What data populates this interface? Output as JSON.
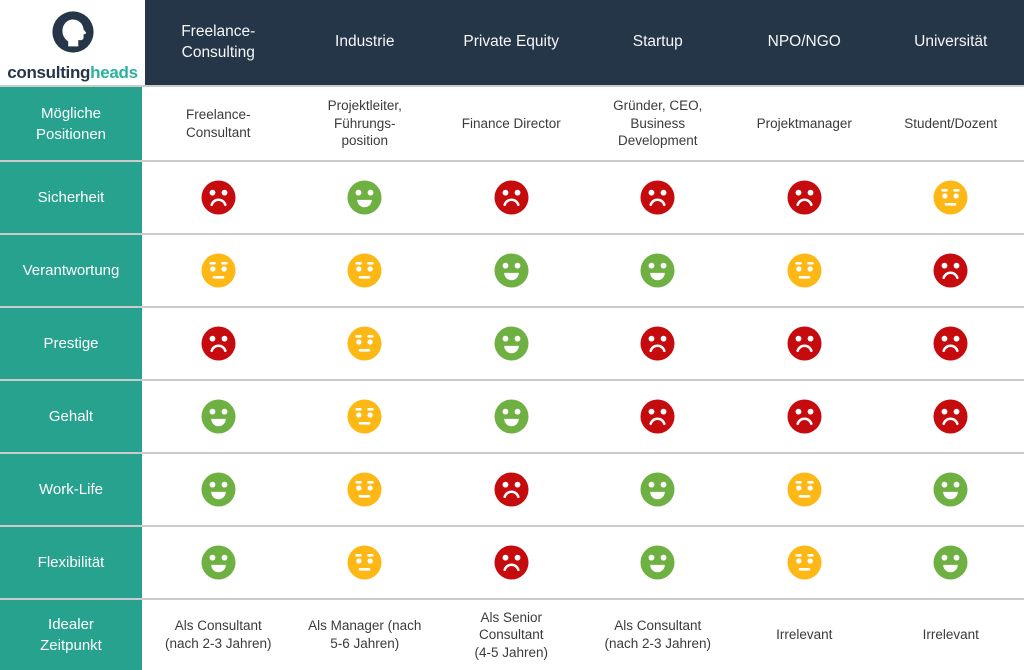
{
  "brand": {
    "name_part1": "consulting",
    "name_part2": "heads",
    "navy": "#263649",
    "teal": "#2cb29b"
  },
  "colors": {
    "header_bg": "#263649",
    "sidebar_bg": "#26a28f",
    "separator": "#cbcbcb",
    "cell_text": "#3b3b3b"
  },
  "ratings": {
    "positive": {
      "color": "#6fb043",
      "mood": "happy"
    },
    "neutral": {
      "color": "#fdb815",
      "mood": "neutral"
    },
    "negative": {
      "color": "#c60b0e",
      "mood": "sad"
    }
  },
  "chart_data": {
    "type": "table",
    "columns": [
      "Freelance-\nConsulting",
      "Industrie",
      "Private Equity",
      "Startup",
      "NPO/NGO",
      "Universität"
    ],
    "rows": [
      {
        "label": "Mögliche\nPositionen",
        "type": "text",
        "values": [
          "Freelance-\nConsultant",
          "Projektleiter,\nFührungs-\nposition",
          "Finance Director",
          "Gründer, CEO,\nBusiness\nDevelopment",
          "Projektmanager",
          "Student/Dozent"
        ]
      },
      {
        "label": "Sicherheit",
        "type": "rating",
        "values": [
          "negative",
          "positive",
          "negative",
          "negative",
          "negative",
          "neutral"
        ]
      },
      {
        "label": "Verantwortung",
        "type": "rating",
        "values": [
          "neutral",
          "neutral",
          "positive",
          "positive",
          "neutral",
          "negative"
        ]
      },
      {
        "label": "Prestige",
        "type": "rating",
        "values": [
          "negative",
          "neutral",
          "positive",
          "negative",
          "negative",
          "negative"
        ]
      },
      {
        "label": "Gehalt",
        "type": "rating",
        "values": [
          "positive",
          "neutral",
          "positive",
          "negative",
          "negative",
          "negative"
        ]
      },
      {
        "label": "Work-Life",
        "type": "rating",
        "values": [
          "positive",
          "neutral",
          "negative",
          "positive",
          "neutral",
          "positive"
        ]
      },
      {
        "label": "Flexibilität",
        "type": "rating",
        "values": [
          "positive",
          "neutral",
          "negative",
          "positive",
          "neutral",
          "positive"
        ]
      },
      {
        "label": "Idealer\nZeitpunkt",
        "type": "text",
        "values": [
          "Als Consultant\n(nach 2-3 Jahren)",
          "Als Manager (nach\n5-6 Jahren)",
          "Als Senior\nConsultant\n(4-5 Jahren)",
          "Als Consultant\n(nach 2-3 Jahren)",
          "Irrelevant",
          "Irrelevant"
        ]
      }
    ]
  }
}
